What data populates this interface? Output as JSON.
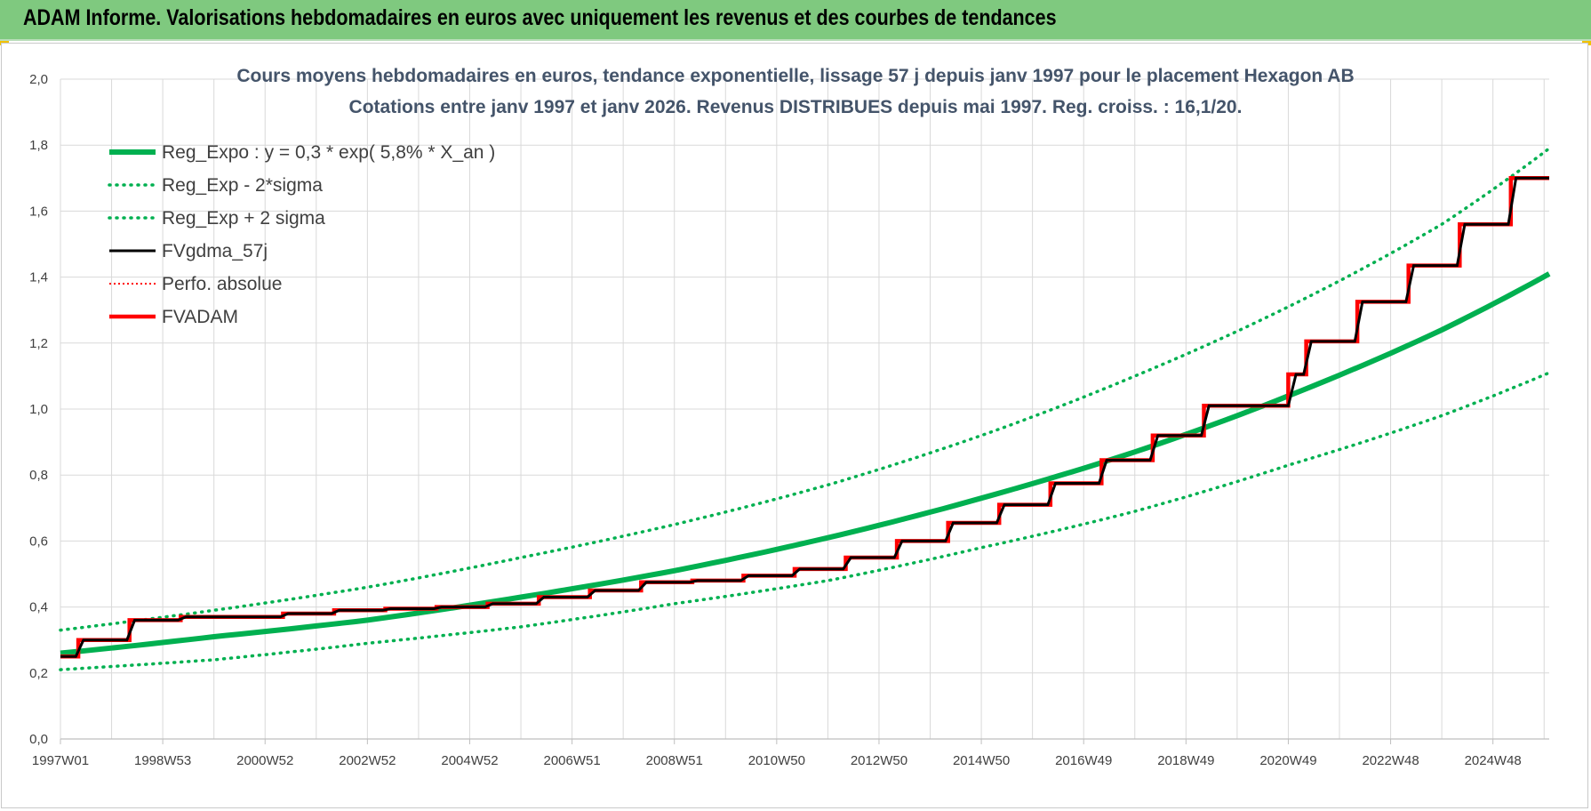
{
  "header": {
    "title": "ADAM Informe. Valorisations hebdomadaires en euros avec uniquement les revenus et des courbes de tendances"
  },
  "colors": {
    "header_bg": "#7fc97f",
    "trend": "#00b050",
    "adam": "#ff0000",
    "smooth": "#000000",
    "grid": "#d9d9d9"
  },
  "chart_data": {
    "type": "line",
    "title": [
      "Cours moyens hebdomadaires en euros, tendance exponentielle, lissage 57 j depuis janv 1997  pour le placement Hexagon AB",
      "Cotations entre janv 1997 et janv 2026. Revenus DISTRIBUES depuis mai 1997.  Reg. croiss. : 16,1/20."
    ],
    "xlabel": "",
    "ylabel": "",
    "x_range": [
      1997.0,
      2026.1
    ],
    "ylim": [
      0,
      2.0
    ],
    "grid": true,
    "legend_position": "top-left",
    "x_ticks": [
      {
        "label": "1997W01",
        "x": 1997.0
      },
      {
        "label": "1998W53",
        "x": 1999.0
      },
      {
        "label": "2000W52",
        "x": 2001.0
      },
      {
        "label": "2002W52",
        "x": 2003.0
      },
      {
        "label": "2004W52",
        "x": 2005.0
      },
      {
        "label": "2006W51",
        "x": 2007.0
      },
      {
        "label": "2008W51",
        "x": 2009.0
      },
      {
        "label": "2010W50",
        "x": 2011.0
      },
      {
        "label": "2012W50",
        "x": 2013.0
      },
      {
        "label": "2014W50",
        "x": 2015.0
      },
      {
        "label": "2016W49",
        "x": 2017.0
      },
      {
        "label": "2018W49",
        "x": 2019.0
      },
      {
        "label": "2020W49",
        "x": 2021.0
      },
      {
        "label": "2022W48",
        "x": 2023.0
      },
      {
        "label": "2024W48",
        "x": 2025.0
      }
    ],
    "y_ticks": [
      "0,0",
      "0,2",
      "0,4",
      "0,6",
      "0,8",
      "1,0",
      "1,2",
      "1,4",
      "1,6",
      "1,8",
      "2,0"
    ],
    "series": [
      {
        "name": "Reg_Expo : y = 0,3 * exp( 5,8% *  X_an )",
        "kind": "trend",
        "color": "#00b050",
        "dash": "solid",
        "x": [
          1997,
          2000,
          2003,
          2006,
          2009,
          2012,
          2015,
          2018,
          2021,
          2024,
          2026.1
        ],
        "values": [
          0.26,
          0.31,
          0.36,
          0.43,
          0.51,
          0.61,
          0.73,
          0.87,
          1.04,
          1.24,
          1.41
        ]
      },
      {
        "name": "Reg_Exp - 2*sigma",
        "kind": "lower",
        "color": "#00b050",
        "dash": "dotted",
        "x": [
          1997,
          2000,
          2003,
          2006,
          2009,
          2012,
          2015,
          2018,
          2021,
          2024,
          2026.1
        ],
        "values": [
          0.21,
          0.24,
          0.29,
          0.34,
          0.41,
          0.48,
          0.58,
          0.69,
          0.83,
          0.98,
          1.11
        ]
      },
      {
        "name": "Reg_Exp + 2 sigma",
        "kind": "upper",
        "color": "#00b050",
        "dash": "dotted",
        "x": [
          1997,
          2000,
          2003,
          2006,
          2009,
          2012,
          2015,
          2018,
          2021,
          2024,
          2026.1
        ],
        "values": [
          0.33,
          0.39,
          0.46,
          0.55,
          0.65,
          0.77,
          0.92,
          1.1,
          1.31,
          1.56,
          1.79
        ]
      },
      {
        "name": "FVgdma_57j",
        "kind": "smooth",
        "color": "#000000",
        "dash": "solid",
        "x": [
          1997.0,
          1997.3,
          1997.45,
          1998.3,
          1998.45,
          1999.3,
          1999.45,
          2001.3,
          2001.45,
          2002.3,
          2002.45,
          2003.3,
          2003.45,
          2004.3,
          2004.45,
          2005.3,
          2005.45,
          2006.3,
          2006.45,
          2007.3,
          2007.45,
          2008.3,
          2008.45,
          2009.3,
          2009.45,
          2010.3,
          2010.45,
          2011.3,
          2011.45,
          2012.3,
          2012.45,
          2013.3,
          2013.45,
          2014.3,
          2014.45,
          2015.3,
          2015.45,
          2016.3,
          2016.45,
          2017.3,
          2017.45,
          2018.3,
          2018.45,
          2019.3,
          2019.45,
          2021.0,
          2021.15,
          2021.3,
          2021.45,
          2022.3,
          2022.45,
          2023.3,
          2023.45,
          2024.3,
          2024.45,
          2025.3,
          2025.45,
          2026.1
        ],
        "values": [
          0.25,
          0.25,
          0.3,
          0.3,
          0.36,
          0.36,
          0.37,
          0.37,
          0.38,
          0.38,
          0.39,
          0.39,
          0.395,
          0.395,
          0.4,
          0.4,
          0.41,
          0.41,
          0.43,
          0.43,
          0.45,
          0.45,
          0.475,
          0.475,
          0.48,
          0.48,
          0.495,
          0.495,
          0.515,
          0.515,
          0.55,
          0.55,
          0.6,
          0.6,
          0.655,
          0.655,
          0.71,
          0.71,
          0.775,
          0.775,
          0.845,
          0.845,
          0.92,
          0.92,
          1.01,
          1.01,
          1.105,
          1.105,
          1.205,
          1.205,
          1.325,
          1.325,
          1.435,
          1.435,
          1.56,
          1.56,
          1.7,
          1.7
        ]
      },
      {
        "name": "Perfo. absolue",
        "kind": "perfo",
        "color": "#ff0000",
        "dash": "dotted",
        "x": [],
        "values": []
      },
      {
        "name": "FVADAM",
        "kind": "adam",
        "color": "#ff0000",
        "dash": "solid",
        "x": [
          1997.0,
          1997.35,
          1997.35,
          1998.35,
          1998.35,
          1999.35,
          1999.35,
          2001.35,
          2001.35,
          2002.35,
          2002.35,
          2003.35,
          2003.35,
          2004.35,
          2004.35,
          2005.35,
          2005.35,
          2006.35,
          2006.35,
          2007.35,
          2007.35,
          2008.35,
          2008.35,
          2009.35,
          2009.35,
          2010.35,
          2010.35,
          2011.35,
          2011.35,
          2012.35,
          2012.35,
          2013.35,
          2013.35,
          2014.35,
          2014.35,
          2015.35,
          2015.35,
          2016.35,
          2016.35,
          2017.35,
          2017.35,
          2018.35,
          2018.35,
          2019.35,
          2019.35,
          2021.0,
          2021.0,
          2021.35,
          2021.35,
          2022.35,
          2022.35,
          2023.35,
          2023.35,
          2024.35,
          2024.35,
          2025.35,
          2025.35,
          2026.1
        ],
        "values": [
          0.25,
          0.25,
          0.3,
          0.3,
          0.36,
          0.36,
          0.37,
          0.37,
          0.38,
          0.38,
          0.39,
          0.39,
          0.395,
          0.395,
          0.4,
          0.4,
          0.41,
          0.41,
          0.43,
          0.43,
          0.45,
          0.45,
          0.475,
          0.475,
          0.48,
          0.48,
          0.495,
          0.495,
          0.515,
          0.515,
          0.55,
          0.55,
          0.6,
          0.6,
          0.655,
          0.655,
          0.71,
          0.71,
          0.775,
          0.775,
          0.845,
          0.845,
          0.92,
          0.92,
          1.01,
          1.01,
          1.105,
          1.105,
          1.205,
          1.205,
          1.325,
          1.325,
          1.435,
          1.435,
          1.56,
          1.56,
          1.7,
          1.7
        ]
      }
    ]
  }
}
